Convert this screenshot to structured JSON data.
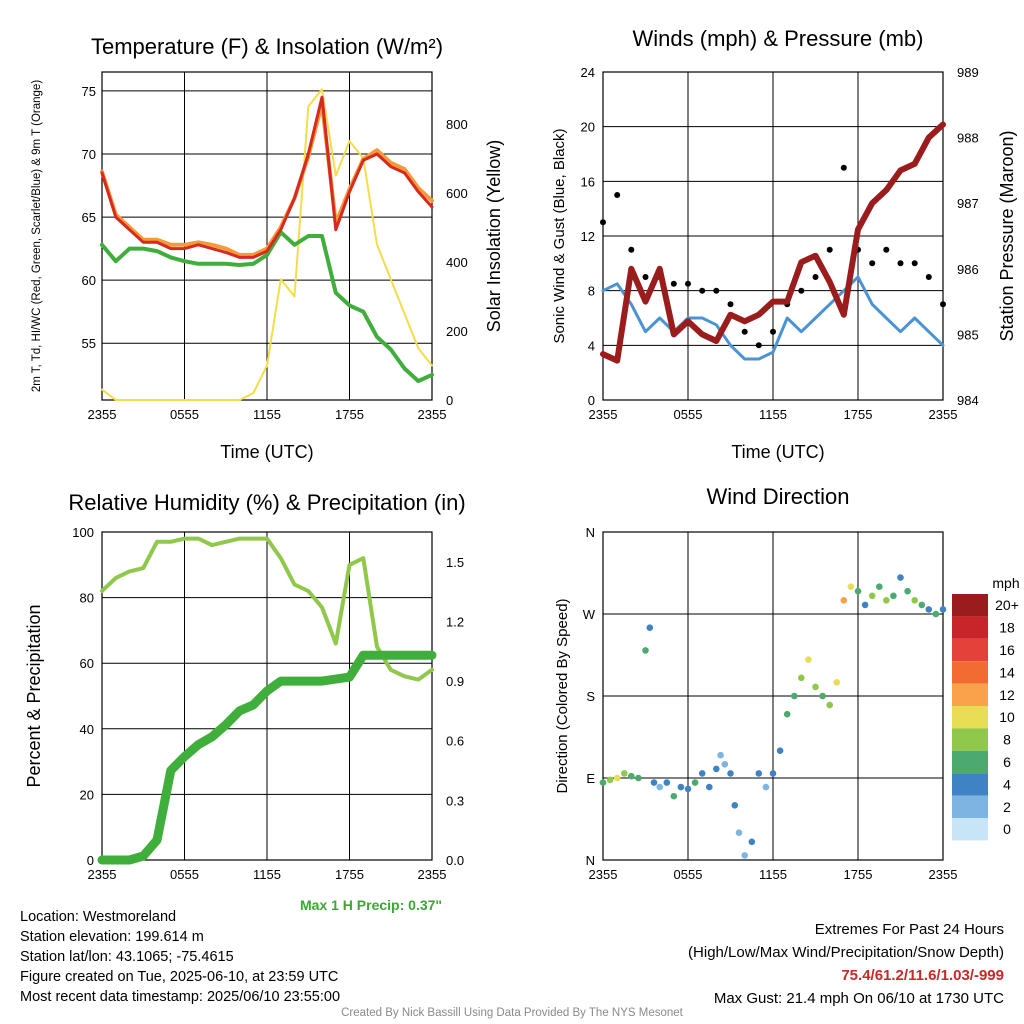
{
  "chart_data": [
    {
      "type": "line",
      "title": "Temperature (F) & Insolation (W/m²)",
      "xlabel": "Time (UTC)",
      "ylabel": "2m T, Td, HI/WC (Red, Green, Scarlet/Blue) & 9m T (Orange)",
      "y2label": "Solar Insolation (Yellow)",
      "x_ticks": [
        "2355",
        "0555",
        "1155",
        "1755",
        "2355"
      ],
      "ylim": [
        50.5,
        76.5
      ],
      "y_ticks": [
        55,
        60,
        65,
        70,
        75
      ],
      "y2lim": [
        0,
        950
      ],
      "y2_ticks": [
        0,
        200,
        400,
        600,
        800
      ],
      "x_hours": [
        0,
        1,
        2,
        3,
        4,
        5,
        6,
        7,
        8,
        9,
        10,
        11,
        12,
        13,
        14,
        15,
        16,
        17,
        18,
        19,
        20,
        21,
        22,
        23,
        24
      ],
      "series": [
        {
          "name": "2m T",
          "color": "#d62a1e",
          "axis": "left",
          "values": [
            68.5,
            65,
            64,
            63,
            63,
            62.5,
            62.5,
            62.8,
            62.5,
            62.2,
            61.8,
            61.8,
            62.3,
            64,
            66.5,
            70,
            74.5,
            64,
            67,
            69.5,
            70,
            69,
            68.5,
            67,
            65.8
          ]
        },
        {
          "name": "Td",
          "color": "#3fae3a",
          "axis": "left",
          "values": [
            62.8,
            61.5,
            62.5,
            62.5,
            62.3,
            61.8,
            61.5,
            61.3,
            61.3,
            61.3,
            61.2,
            61.3,
            62,
            63.8,
            62.8,
            63.5,
            63.5,
            59,
            58,
            57.5,
            55.5,
            54.5,
            53,
            52,
            52.5
          ]
        },
        {
          "name": "9m T",
          "color": "#f39a3c",
          "axis": "left",
          "values": [
            68.6,
            65.2,
            64.2,
            63.2,
            63.2,
            62.8,
            62.8,
            63,
            62.8,
            62.5,
            62,
            62,
            62.5,
            64.2,
            66.5,
            69.8,
            74,
            64.5,
            67.2,
            69.6,
            70.3,
            69.3,
            68.8,
            67.3,
            66.3
          ]
        },
        {
          "name": "Insolation",
          "color": "#f5dd4a",
          "axis": "right",
          "values": [
            30,
            0,
            0,
            0,
            0,
            0,
            0,
            0,
            0,
            0,
            0,
            20,
            100,
            350,
            300,
            850,
            900,
            650,
            750,
            700,
            450,
            350,
            250,
            150,
            100
          ]
        }
      ]
    },
    {
      "type": "line",
      "title": "Winds (mph) & Pressure (mb)",
      "xlabel": "Time (UTC)",
      "ylabel": "Sonic Wind & Gust (Blue, Black)",
      "y2label": "Station Pressure (Maroon)",
      "x_ticks": [
        "2355",
        "0555",
        "1155",
        "1755",
        "2355"
      ],
      "ylim": [
        0,
        24
      ],
      "y_ticks": [
        0,
        4,
        8,
        12,
        16,
        20,
        24
      ],
      "y2lim": [
        984,
        989
      ],
      "y2_ticks": [
        984,
        985,
        986,
        987,
        988,
        989
      ],
      "x_hours": [
        0,
        1,
        2,
        3,
        4,
        5,
        6,
        7,
        8,
        9,
        10,
        11,
        12,
        13,
        14,
        15,
        16,
        17,
        18,
        19,
        20,
        21,
        22,
        23,
        24
      ],
      "series": [
        {
          "name": "Sonic Wind",
          "color": "#4a94d3",
          "axis": "left",
          "values": [
            8,
            8.5,
            7,
            5,
            6,
            5,
            6,
            6,
            5.5,
            4,
            3,
            3,
            3.5,
            6,
            5,
            6,
            7,
            8,
            9,
            7,
            6,
            5,
            6,
            5,
            4
          ]
        },
        {
          "name": "Gust",
          "color": "#000000",
          "axis": "left",
          "values": [
            13,
            15,
            11,
            9,
            9,
            8.5,
            8.5,
            8,
            8,
            7,
            5,
            4,
            5,
            7,
            8,
            9,
            11,
            17,
            11,
            10,
            11,
            10,
            10,
            9,
            7
          ]
        },
        {
          "name": "Station Pressure",
          "color": "#9b1c1c",
          "axis": "right",
          "values": [
            984.7,
            984.6,
            986,
            985.5,
            986,
            985,
            985.2,
            985,
            984.9,
            985.3,
            985.2,
            985.3,
            985.5,
            985.5,
            986.1,
            986.2,
            985.8,
            985.3,
            986.6,
            987,
            987.2,
            987.5,
            987.6,
            988,
            988.2
          ]
        }
      ]
    },
    {
      "type": "line",
      "title": "Relative Humidity (%) & Precipitation (in)",
      "ylabel": "Percent & Precipitation",
      "x_ticks": [
        "2355",
        "0555",
        "1155",
        "1755",
        "2355"
      ],
      "ylim": [
        0,
        100
      ],
      "y_ticks": [
        0,
        20,
        40,
        60,
        80,
        100
      ],
      "y2lim": [
        0,
        1.65
      ],
      "y2_ticks": [
        "0.0",
        "0.3",
        "0.6",
        "0.9",
        "1.2",
        "1.5"
      ],
      "x_hours": [
        0,
        1,
        2,
        3,
        4,
        5,
        6,
        7,
        8,
        9,
        10,
        11,
        12,
        13,
        14,
        15,
        16,
        17,
        18,
        19,
        20,
        21,
        22,
        23,
        24
      ],
      "series": [
        {
          "name": "Relative Humidity",
          "color": "#8fc84a",
          "axis": "left",
          "values": [
            82,
            86,
            88,
            89,
            97,
            97,
            98,
            98,
            96,
            97,
            98,
            98,
            98,
            92,
            84,
            82,
            77,
            66,
            90,
            92,
            65,
            58,
            56,
            55,
            58
          ]
        },
        {
          "name": "Precipitation",
          "color": "#3fae3a",
          "axis": "right",
          "values": [
            0,
            0,
            0,
            0.02,
            0.1,
            0.45,
            0.52,
            0.58,
            0.62,
            0.68,
            0.75,
            0.78,
            0.85,
            0.9,
            0.9,
            0.9,
            0.9,
            0.91,
            0.92,
            1.03,
            1.03,
            1.03,
            1.03,
            1.03,
            1.03
          ]
        }
      ]
    },
    {
      "type": "scatter",
      "title": "Wind Direction",
      "ylabel": "Direction (Colored By Speed)",
      "x_ticks": [
        "2355",
        "0555",
        "1155",
        "1755",
        "2355"
      ],
      "y_ticks": [
        "N",
        "E",
        "S",
        "W",
        "N"
      ],
      "ylim": [
        0,
        360
      ],
      "x_hours": [
        0,
        0.5,
        1,
        1.5,
        2,
        2.5,
        3,
        3.3,
        3.6,
        4,
        4.5,
        5,
        5.5,
        6,
        6.5,
        7,
        7.5,
        8,
        8.3,
        8.6,
        9,
        9.3,
        9.6,
        10,
        10.5,
        11,
        11.5,
        12,
        12.5,
        13,
        13.5,
        14,
        14.5,
        15,
        15.5,
        16,
        16.5,
        17,
        17.5,
        18,
        18.5,
        19,
        19.5,
        20,
        20.5,
        21,
        21.5,
        22,
        22.5,
        23,
        23.5,
        24
      ],
      "values": [
        85,
        88,
        90,
        95,
        92,
        90,
        230,
        255,
        85,
        80,
        85,
        70,
        80,
        78,
        85,
        95,
        80,
        100,
        115,
        105,
        95,
        60,
        30,
        5,
        20,
        95,
        80,
        95,
        120,
        160,
        180,
        200,
        220,
        190,
        180,
        170,
        195,
        285,
        300,
        295,
        280,
        290,
        300,
        285,
        290,
        310,
        295,
        285,
        280,
        275,
        270,
        275
      ],
      "speeds": [
        6,
        8,
        9,
        7,
        6,
        5,
        5,
        4,
        3,
        2,
        4,
        6,
        3,
        4,
        5,
        4,
        3,
        4,
        2,
        1,
        3,
        3,
        2,
        2,
        4,
        3,
        2,
        3,
        4,
        5,
        6,
        8,
        9,
        7,
        6,
        8,
        10,
        12,
        9,
        6,
        4,
        7,
        6,
        8,
        5,
        4,
        6,
        7,
        5,
        4,
        6,
        3
      ]
    }
  ],
  "legend": {
    "unit": "mph",
    "labels": [
      "20+",
      "18",
      "16",
      "14",
      "12",
      "10",
      "8",
      "6",
      "4",
      "2",
      "0"
    ],
    "colors": [
      "#9b1c1c",
      "#c8252a",
      "#e4413a",
      "#f26b31",
      "#f9a249",
      "#e8de56",
      "#8fc84a",
      "#4caa6e",
      "#3f83c5",
      "#7db4e1",
      "#c7e5f7"
    ]
  },
  "station": {
    "location": "Location: Westmoreland",
    "elevation": "Station elevation: 199.614 m",
    "latlon": "Station lat/lon: 43.1065; -75.4615",
    "created": "Figure created on Tue, 2025-06-10, at 23:59 UTC",
    "recent": "Most recent data timestamp: 2025/06/10 23:55:00"
  },
  "precip_max": "Max 1 H Precip: 0.37\"",
  "extremes": {
    "title": "Extremes For Past 24 Hours",
    "subtitle": "(High/Low/Max Wind/Precipitation/Snow Depth)",
    "values": "75.4/61.2/11.6/1.03/-999",
    "max_gust": "Max Gust: 21.4 mph On 06/10 at 1730 UTC"
  },
  "credit": "Created By Nick Bassill Using Data Provided By The NYS Mesonet"
}
